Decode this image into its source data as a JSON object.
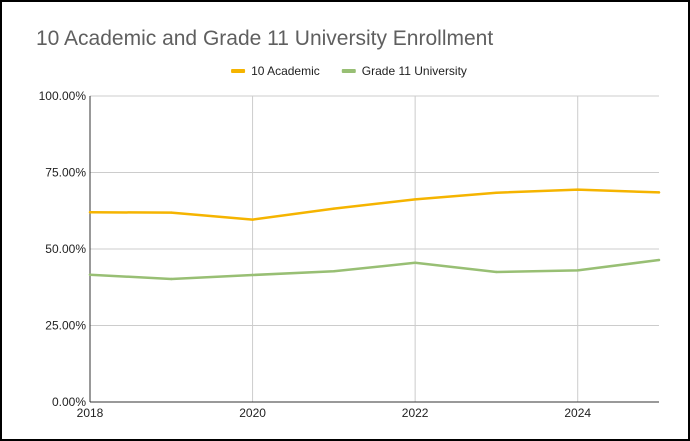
{
  "chart_data": {
    "type": "line",
    "title": "10 Academic and Grade 11 University Enrollment",
    "xlabel": "",
    "ylabel": "",
    "x": [
      2018,
      2019,
      2020,
      2021,
      2022,
      2023,
      2024,
      2025
    ],
    "x_ticks": [
      "2018",
      "2020",
      "2022",
      "2024"
    ],
    "x_tick_values": [
      2018,
      2020,
      2022,
      2024
    ],
    "ylim": [
      0,
      100
    ],
    "y_ticks": [
      "0.00%",
      "25.00%",
      "50.00%",
      "75.00%",
      "100.00%"
    ],
    "y_tick_values": [
      0,
      25,
      50,
      75,
      100
    ],
    "grid": true,
    "legend_position": "top",
    "series": [
      {
        "name": "10 Academic",
        "color": "#f5b400",
        "values": [
          62.0,
          61.9,
          59.6,
          63.2,
          66.2,
          68.4,
          69.4,
          68.5
        ]
      },
      {
        "name": "Grade 11 University",
        "color": "#98bf74",
        "values": [
          41.6,
          40.2,
          41.5,
          42.7,
          45.5,
          42.5,
          43.0,
          46.4
        ]
      }
    ]
  }
}
